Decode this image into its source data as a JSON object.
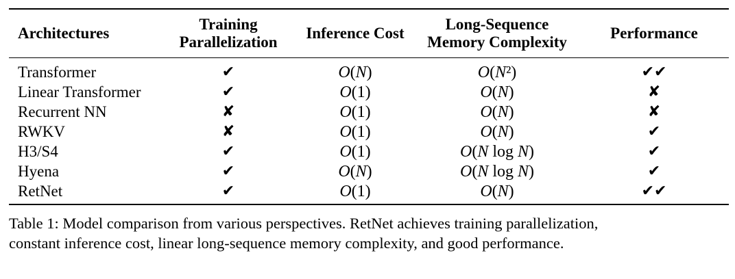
{
  "table": {
    "headers": {
      "architectures": "Architectures",
      "training_line1": "Training",
      "training_line2": "Parallelization",
      "inference": "Inference Cost",
      "memory_line1": "Long-Sequence",
      "memory_line2": "Memory Complexity",
      "performance": "Performance"
    },
    "rows": [
      {
        "name": "Transformer",
        "training": "✔",
        "inference": "O(N)",
        "memory": "O(N²)",
        "performance": "✔✔"
      },
      {
        "name": "Linear Transformer",
        "training": "✔",
        "inference": "O(1)",
        "memory": "O(N)",
        "performance": "✘"
      },
      {
        "name": "Recurrent NN",
        "training": "✘",
        "inference": "O(1)",
        "memory": "O(N)",
        "performance": "✘"
      },
      {
        "name": "RWKV",
        "training": "✘",
        "inference": "O(1)",
        "memory": "O(N)",
        "performance": "✔"
      },
      {
        "name": "H3/S4",
        "training": "✔",
        "inference": "O(1)",
        "memory": "O(N log N)",
        "performance": "✔"
      },
      {
        "name": "Hyena",
        "training": "✔",
        "inference": "O(N)",
        "memory": "O(N log N)",
        "performance": "✔"
      },
      {
        "name": "RetNet",
        "training": "✔",
        "inference": "O(1)",
        "memory": "O(N)",
        "performance": "✔✔"
      }
    ]
  },
  "caption": {
    "line1": "Table 1: Model comparison from various perspectives. RetNet achieves training parallelization,",
    "line2": "constant inference cost, linear long-sequence memory complexity, and good performance."
  }
}
